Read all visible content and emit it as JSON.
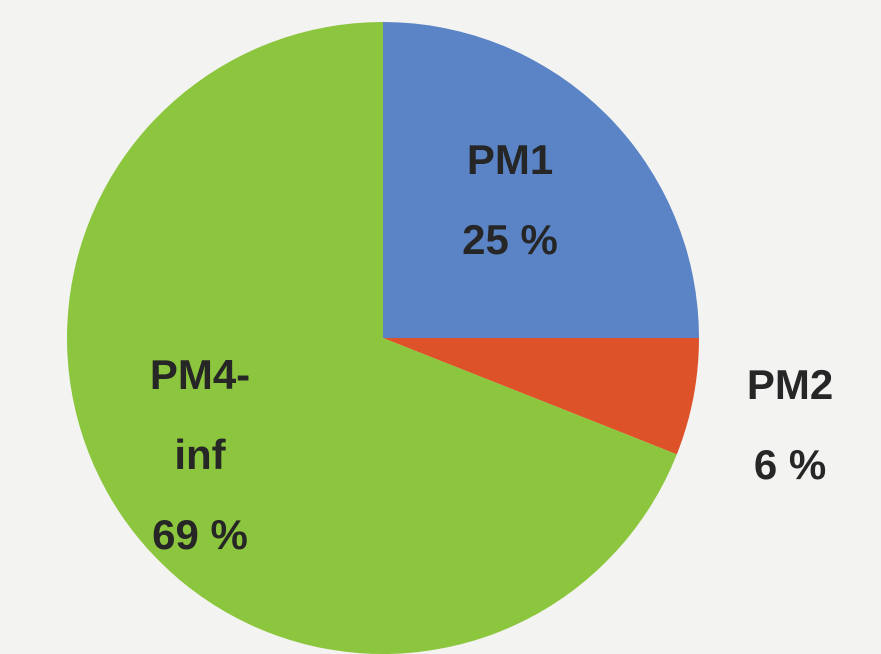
{
  "chart_data": {
    "type": "pie",
    "categories": [
      "PM1",
      "PM2",
      "PM4-inf"
    ],
    "values": [
      25,
      6,
      69
    ],
    "value_labels": [
      "25 %",
      "6 %",
      "69 %"
    ],
    "colors": [
      "#5a84c6",
      "#de5229",
      "#8cc63e"
    ]
  }
}
